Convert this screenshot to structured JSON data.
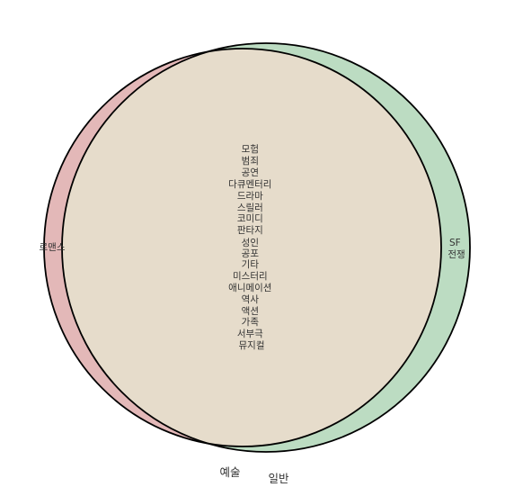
{
  "diagram": {
    "type": "venn2",
    "sets": [
      {
        "id": "A",
        "label": "예술",
        "color": "#e3b8b8"
      },
      {
        "id": "B",
        "label": "일반",
        "color": "#bcdcc2"
      }
    ],
    "intersection_color": "#e6dccb",
    "outline_color": "#000000",
    "regions": {
      "A_only": [
        "로맨스"
      ],
      "B_only": [
        "SF",
        "전쟁"
      ],
      "A_and_B": [
        "모험",
        "범죄",
        "공연",
        "다큐멘터리",
        "드라마",
        "스릴러",
        "코미디",
        "판타지",
        "성인",
        "공포",
        "기타",
        "미스터리",
        "애니메이션",
        "역사",
        "액션",
        "가족",
        "서부극",
        "뮤지컬"
      ]
    }
  }
}
